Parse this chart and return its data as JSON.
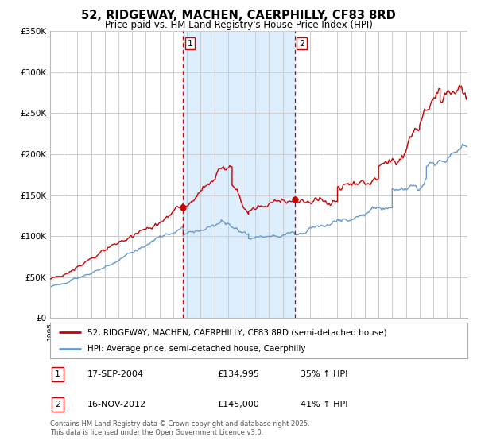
{
  "title": "52, RIDGEWAY, MACHEN, CAERPHILLY, CF83 8RD",
  "subtitle": "Price paid vs. HM Land Registry's House Price Index (HPI)",
  "title_fontsize": 10.5,
  "subtitle_fontsize": 8.5,
  "background_color": "#ffffff",
  "plot_bg_color": "#ffffff",
  "grid_color": "#cccccc",
  "line1_color": "#cc0000",
  "line2_color": "#6699cc",
  "ylim": [
    0,
    350000
  ],
  "yticks": [
    0,
    50000,
    100000,
    150000,
    200000,
    250000,
    300000,
    350000
  ],
  "ytick_labels": [
    "£0",
    "£50K",
    "£100K",
    "£150K",
    "£200K",
    "£250K",
    "£300K",
    "£350K"
  ],
  "sale1_date_num": 2004.72,
  "sale1_price": 134995,
  "sale1_label": "1",
  "sale2_date_num": 2012.88,
  "sale2_price": 145000,
  "sale2_label": "2",
  "shade_color": "#ddeeff",
  "vline_color": "#cc0000",
  "legend1_label": "52, RIDGEWAY, MACHEN, CAERPHILLY, CF83 8RD (semi-detached house)",
  "legend2_label": "HPI: Average price, semi-detached house, Caerphilly",
  "table_row1": [
    "1",
    "17-SEP-2004",
    "£134,995",
    "35% ↑ HPI"
  ],
  "table_row2": [
    "2",
    "16-NOV-2012",
    "£145,000",
    "41% ↑ HPI"
  ],
  "footer": "Contains HM Land Registry data © Crown copyright and database right 2025.\nThis data is licensed under the Open Government Licence v3.0.",
  "xmin": 1995,
  "xmax": 2025.5
}
